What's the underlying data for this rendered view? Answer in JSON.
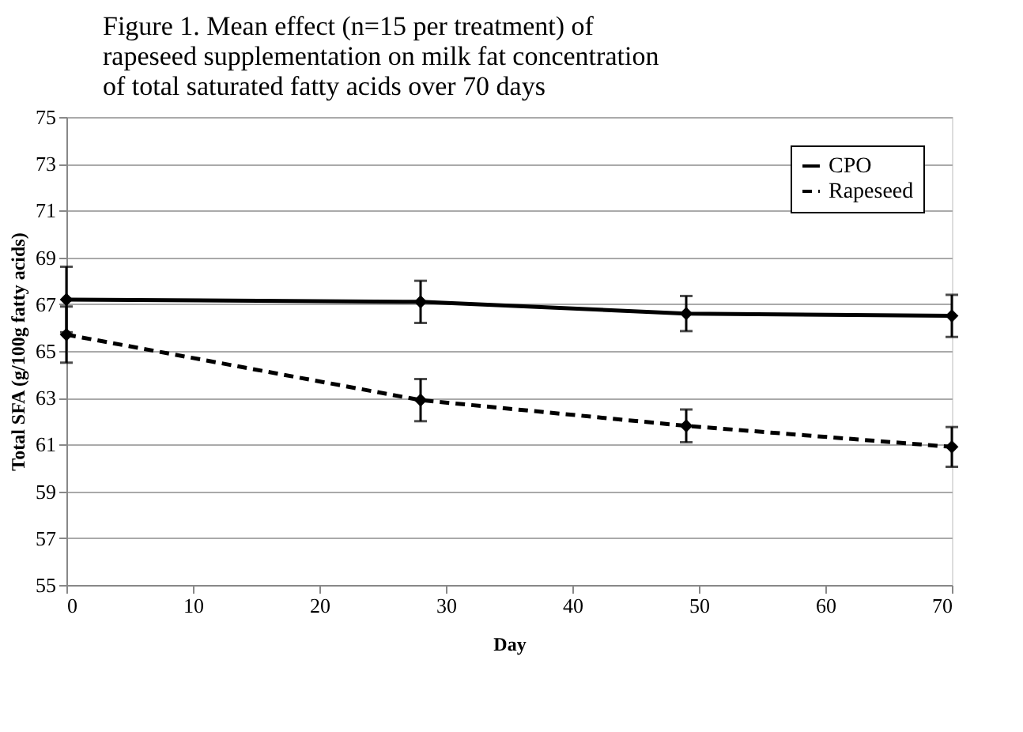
{
  "chart_data": {
    "type": "line",
    "title": "Figure 1. Mean effect (n=15 per treatment) of rapeseed supplementation on milk fat concentration of total saturated fatty acids over 70 days",
    "xlabel": "Day",
    "ylabel": "Total SFA (g/100g fatty acids)",
    "x": [
      0,
      28,
      49,
      70
    ],
    "series": [
      {
        "name": "CPO",
        "color": "#000000",
        "line_style": "solid",
        "values": [
          67.2,
          67.1,
          66.6,
          66.5
        ],
        "errors": [
          1.4,
          0.9,
          0.75,
          0.9
        ]
      },
      {
        "name": "Rapeseed",
        "color": "#000000",
        "line_style": "dashed",
        "values": [
          65.7,
          62.9,
          61.8,
          60.9
        ],
        "errors": [
          1.2,
          0.9,
          0.7,
          0.85
        ]
      }
    ],
    "xlim": [
      0,
      70
    ],
    "xticks": [
      0,
      10,
      20,
      30,
      40,
      50,
      60,
      70
    ],
    "ylim": [
      55,
      75
    ],
    "yticks": [
      55,
      57,
      59,
      61,
      63,
      65,
      67,
      69,
      71,
      73,
      75
    ],
    "grid": "y",
    "legend": "top right",
    "marker": "diamond"
  }
}
